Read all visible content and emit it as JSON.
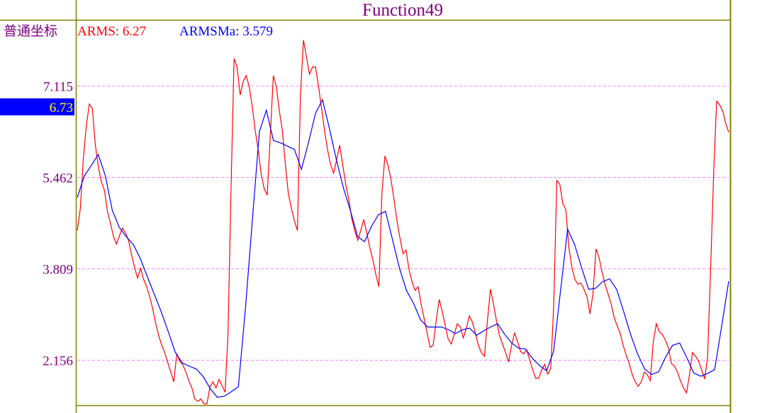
{
  "chart_data": {
    "type": "line",
    "title": "Function49",
    "coordinate_mode_label": "普通坐标",
    "xlabel": "",
    "ylabel": "",
    "ylim": [
      1.336,
      8.29
    ],
    "yticks": [
      "7.115",
      "5.462",
      "3.809",
      "2.156"
    ],
    "ytick_values": [
      7.115,
      5.462,
      3.809,
      2.156
    ],
    "grid": true,
    "current_value_marker": {
      "label": "6.73",
      "value": 6.73,
      "background": "#0000ff",
      "text_color": "#ffff00"
    },
    "legend": [
      {
        "name": "ARMS",
        "value_text": "6.27",
        "color": "#ff0000"
      },
      {
        "name": "ARMSMa",
        "value_text": "3.579",
        "color": "#0000ff"
      }
    ],
    "series": [
      {
        "name": "ARMS",
        "color": "#ff0000",
        "values": [
          4.494,
          4.891,
          5.773,
          6.391,
          6.78,
          6.7,
          6.038,
          5.641,
          5.376,
          5.222,
          4.847,
          4.626,
          4.383,
          4.251,
          4.405,
          4.538,
          4.45,
          4.317,
          4.052,
          3.832,
          3.633,
          3.81,
          3.611,
          3.479,
          3.302,
          3.082,
          2.817,
          2.596,
          2.42,
          2.287,
          2.111,
          1.934,
          1.758,
          2.265,
          2.133,
          2.067,
          1.934,
          1.78,
          1.647,
          1.449,
          1.405,
          1.449,
          1.361,
          1.361,
          1.669,
          1.758,
          1.647,
          1.802,
          1.691,
          1.572,
          2.64,
          5.288,
          7.605,
          7.45,
          6.943,
          7.186,
          7.296,
          7.097,
          6.744,
          6.303,
          5.95,
          5.509,
          5.244,
          5.134,
          6.215,
          7.296,
          7.097,
          6.656,
          6.303,
          5.685,
          5.156,
          4.891,
          4.67,
          4.494,
          6.921,
          7.936,
          7.627,
          7.318,
          7.45,
          7.45,
          7.097,
          6.7,
          6.303,
          5.95,
          5.685,
          5.531,
          5.773,
          6.038,
          5.685,
          5.332,
          5.067,
          4.715,
          4.494,
          4.317,
          4.494,
          4.692,
          4.45,
          4.185,
          3.964,
          3.699,
          3.479,
          5.156,
          5.84,
          5.685,
          5.42,
          5.067,
          4.67,
          4.361,
          4.074,
          4.141,
          3.788,
          3.567,
          3.412,
          3.478,
          3.17,
          2.905,
          2.64,
          2.384,
          2.42,
          2.861,
          3.249,
          3.037,
          2.773,
          2.53,
          2.442,
          2.618,
          2.808,
          2.751,
          2.552,
          2.728,
          2.949,
          2.839,
          2.64,
          2.42,
          2.287,
          2.221,
          2.861,
          3.435,
          3.17,
          2.861,
          2.596,
          2.442,
          2.287,
          2.119,
          2.42,
          2.64,
          2.486,
          2.309,
          2.265,
          2.34,
          2.155,
          1.978,
          1.824,
          1.824,
          1.978,
          2.075,
          1.899,
          2.0,
          3.17,
          5.398,
          5.332,
          4.979,
          4.869,
          4.185,
          3.832,
          3.611,
          3.523,
          3.545,
          3.435,
          3.302,
          2.984,
          3.346,
          4.163,
          4.008,
          3.743,
          3.523,
          3.346,
          3.17,
          2.927,
          2.773,
          2.64,
          2.42,
          2.243,
          2.089,
          1.89,
          1.758,
          1.678,
          1.758,
          1.934,
          1.89,
          1.78,
          2.486,
          2.808,
          2.662,
          2.618,
          2.508,
          2.376,
          2.089,
          2.045,
          1.934,
          1.78,
          1.647,
          1.559,
          1.89,
          2.287,
          2.221,
          2.133,
          1.978,
          1.811,
          2.199,
          3.81,
          5.509,
          6.833,
          6.766,
          6.656,
          6.435,
          6.27
        ]
      },
      {
        "name": "ARMSMa",
        "color": "#0000ff",
        "values": [
          5.089,
          5.48,
          5.67,
          5.87,
          5.49,
          4.86,
          4.55,
          4.38,
          4.24,
          3.99,
          3.66,
          3.34,
          3.02,
          2.66,
          2.29,
          2.1,
          2.04,
          1.99,
          1.85,
          1.63,
          1.48,
          1.5,
          1.58,
          1.67,
          3.08,
          4.68,
          6.28,
          6.67,
          6.12,
          6.08,
          6.02,
          5.96,
          5.6,
          6.08,
          6.61,
          6.86,
          6.34,
          5.77,
          5.26,
          4.85,
          4.39,
          4.29,
          4.57,
          4.78,
          4.84,
          4.33,
          3.81,
          3.41,
          3.18,
          2.88,
          2.75,
          2.75,
          2.75,
          2.7,
          2.63,
          2.7,
          2.73,
          2.6,
          2.68,
          2.75,
          2.81,
          2.62,
          2.46,
          2.37,
          2.35,
          2.18,
          2.05,
          1.96,
          2.31,
          3.41,
          4.52,
          4.24,
          3.82,
          3.43,
          3.45,
          3.57,
          3.62,
          3.43,
          3.03,
          2.61,
          2.26,
          1.99,
          1.89,
          1.94,
          2.21,
          2.42,
          2.46,
          2.2,
          1.92,
          1.86,
          1.91,
          1.98,
          2.77,
          3.579
        ]
      }
    ]
  }
}
